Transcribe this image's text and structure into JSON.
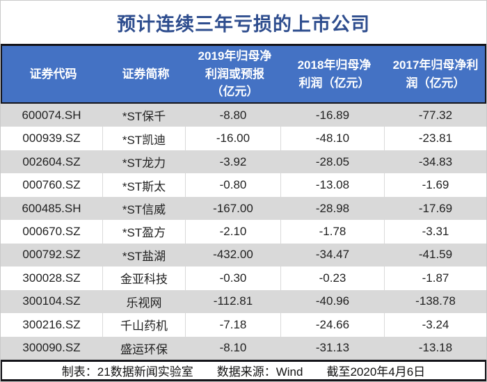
{
  "title": "预计连续三年亏损的上市公司",
  "colors": {
    "title_text": "#2e4d8e",
    "header_bg": "#4472c4",
    "header_text": "#ffffff",
    "row_alt_bg": "#d9d9d9",
    "row_bg": "#ffffff",
    "divider_bar": "#141419",
    "body_text": "#1f1f1f"
  },
  "table": {
    "columns": [
      "证券代码",
      "证券简称",
      "2019年归母净\n利润或预报\n（亿元）",
      "2018年归母净\n利润（亿元）",
      "2017年归母净利\n润（亿元）"
    ],
    "rows": [
      {
        "cells": [
          "600074.SH",
          "*ST保千",
          "-8.80",
          "-16.89",
          "-77.32"
        ]
      },
      {
        "cells": [
          "000939.SZ",
          "*ST凯迪",
          "-16.00",
          "-48.10",
          "-23.81"
        ]
      },
      {
        "cells": [
          "002604.SZ",
          "*ST龙力",
          "-3.92",
          "-28.05",
          "-34.83"
        ]
      },
      {
        "cells": [
          "000760.SZ",
          "*ST斯太",
          "-0.80",
          "-13.08",
          "-1.69"
        ]
      },
      {
        "cells": [
          "600485.SH",
          "*ST信威",
          "-167.00",
          "-28.98",
          "-17.69"
        ]
      },
      {
        "cells": [
          "000670.SZ",
          "*ST盈方",
          "-2.10",
          "-1.78",
          "-3.31"
        ]
      },
      {
        "cells": [
          "000792.SZ",
          "*ST盐湖",
          "-432.00",
          "-34.47",
          "-41.59"
        ]
      },
      {
        "cells": [
          "300028.SZ",
          "金亚科技",
          "-0.30",
          "-0.23",
          "-1.87"
        ]
      },
      {
        "cells": [
          "300104.SZ",
          "乐视网",
          "-112.81",
          "-40.96",
          "-138.78"
        ]
      },
      {
        "cells": [
          "300216.SZ",
          "千山药机",
          "-7.18",
          "-24.66",
          "-3.24"
        ]
      },
      {
        "cells": [
          "300090.SZ",
          "盛运环保",
          "-8.10",
          "-31.13",
          "-13.18"
        ]
      }
    ]
  },
  "footer": {
    "made_by": "制表：21数据新闻实验室",
    "source": "数据来源：Wind",
    "as_of": "截至2020年4月6日"
  },
  "chart_data": {
    "type": "table",
    "title": "预计连续三年亏损的上市公司",
    "columns": [
      "证券代码",
      "证券简称",
      "2019年归母净利润或预报（亿元）",
      "2018年归母净利润（亿元）",
      "2017年归母净利润（亿元）"
    ],
    "rows": [
      [
        "600074.SH",
        "*ST保千",
        -8.8,
        -16.89,
        -77.32
      ],
      [
        "000939.SZ",
        "*ST凯迪",
        -16.0,
        -48.1,
        -23.81
      ],
      [
        "002604.SZ",
        "*ST龙力",
        -3.92,
        -28.05,
        -34.83
      ],
      [
        "000760.SZ",
        "*ST斯太",
        -0.8,
        -13.08,
        -1.69
      ],
      [
        "600485.SH",
        "*ST信威",
        -167.0,
        -28.98,
        -17.69
      ],
      [
        "000670.SZ",
        "*ST盈方",
        -2.1,
        -1.78,
        -3.31
      ],
      [
        "000792.SZ",
        "*ST盐湖",
        -432.0,
        -34.47,
        -41.59
      ],
      [
        "300028.SZ",
        "金亚科技",
        -0.3,
        -0.23,
        -1.87
      ],
      [
        "300104.SZ",
        "乐视网",
        -112.81,
        -40.96,
        -138.78
      ],
      [
        "300216.SZ",
        "千山药机",
        -7.18,
        -24.66,
        -3.24
      ],
      [
        "300090.SZ",
        "盛运环保",
        -8.1,
        -31.13,
        -13.18
      ]
    ],
    "units": "亿元",
    "notes": "制表：21数据新闻实验室 数据来源：Wind 截至2020年4月6日"
  }
}
